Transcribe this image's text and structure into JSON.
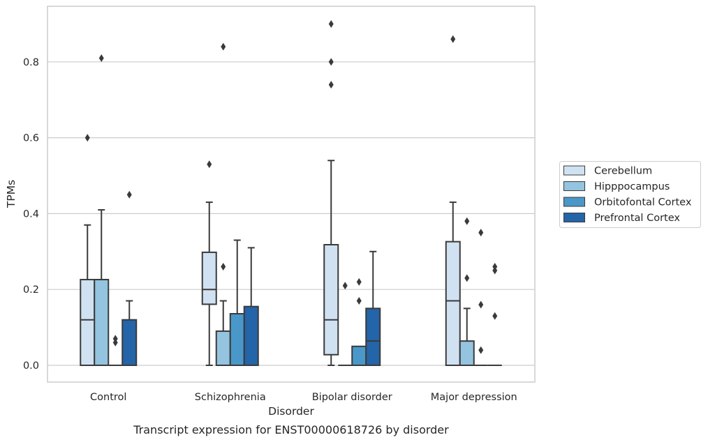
{
  "chart_data": {
    "type": "box",
    "xlabel": "Disorder",
    "ylabel": "TPMs",
    "caption": "Transcript expression for ENST00000618726 by disorder",
    "ylim": [
      -0.044,
      0.95
    ],
    "yticks": [
      "0.0",
      "0.2",
      "0.4",
      "0.6",
      "0.8"
    ],
    "grid": "horizontal",
    "legend_placement": "right",
    "categories": [
      "Control",
      "Schizophrenia",
      "Bipolar disorder",
      "Major depression"
    ],
    "series": [
      {
        "name": "Cerebellum",
        "color": "#d0e1f2",
        "boxes": [
          {
            "q1": 0.0,
            "median": 0.12,
            "q3": 0.226,
            "whislo": 0.0,
            "whishi": 0.37,
            "fliers": [
              0.6
            ]
          },
          {
            "q1": 0.161,
            "median": 0.2,
            "q3": 0.298,
            "whislo": 0.0,
            "whishi": 0.43,
            "fliers": [
              0.53
            ]
          },
          {
            "q1": 0.028,
            "median": 0.12,
            "q3": 0.318,
            "whislo": 0.0,
            "whishi": 0.54,
            "fliers": [
              0.8,
              0.74,
              0.9
            ]
          },
          {
            "q1": 0.0,
            "median": 0.17,
            "q3": 0.326,
            "whislo": 0.0,
            "whishi": 0.43,
            "fliers": [
              0.86
            ]
          }
        ]
      },
      {
        "name": "Hipppocampus",
        "color": "#94c4df",
        "boxes": [
          {
            "q1": 0.0,
            "median": 0.226,
            "q3": 0.226,
            "whislo": 0.0,
            "whishi": 0.41,
            "fliers": [
              0.81
            ]
          },
          {
            "q1": 0.0,
            "median": 0.0,
            "q3": 0.09,
            "whislo": 0.0,
            "whishi": 0.17,
            "fliers": [
              0.26,
              0.84
            ]
          },
          {
            "q1": 0.0,
            "median": 0.0,
            "q3": 0.0,
            "whislo": 0.0,
            "whishi": 0.0,
            "fliers": [
              0.21
            ]
          },
          {
            "q1": 0.0,
            "median": 0.0,
            "q3": 0.064,
            "whislo": 0.0,
            "whishi": 0.15,
            "fliers": [
              0.23,
              0.38
            ]
          }
        ]
      },
      {
        "name": "Orbitofontal Cortex",
        "color": "#4a98c9",
        "boxes": [
          {
            "q1": 0.0,
            "median": 0.0,
            "q3": 0.0,
            "whislo": 0.0,
            "whishi": 0.0,
            "fliers": [
              0.06,
              0.07
            ]
          },
          {
            "q1": 0.0,
            "median": 0.0,
            "q3": 0.136,
            "whislo": 0.0,
            "whishi": 0.33,
            "fliers": []
          },
          {
            "q1": 0.0,
            "median": 0.0,
            "q3": 0.05,
            "whislo": 0.0,
            "whishi": 0.05,
            "fliers": [
              0.17,
              0.22
            ]
          },
          {
            "q1": 0.0,
            "median": 0.0,
            "q3": 0.0,
            "whislo": 0.0,
            "whishi": 0.0,
            "fliers": [
              0.04,
              0.16,
              0.35
            ]
          }
        ]
      },
      {
        "name": "Prefrontal Cortex",
        "color": "#2464a8",
        "boxes": [
          {
            "q1": 0.0,
            "median": 0.0,
            "q3": 0.12,
            "whislo": 0.0,
            "whishi": 0.17,
            "fliers": [
              0.45
            ]
          },
          {
            "q1": 0.0,
            "median": 0.0,
            "q3": 0.155,
            "whislo": 0.0,
            "whishi": 0.31,
            "fliers": []
          },
          {
            "q1": 0.0,
            "median": 0.064,
            "q3": 0.15,
            "whislo": 0.0,
            "whishi": 0.3,
            "fliers": []
          },
          {
            "q1": 0.0,
            "median": 0.0,
            "q3": 0.0,
            "whislo": 0.0,
            "whishi": 0.0,
            "fliers": [
              0.13,
              0.25,
              0.26
            ]
          }
        ]
      }
    ]
  }
}
